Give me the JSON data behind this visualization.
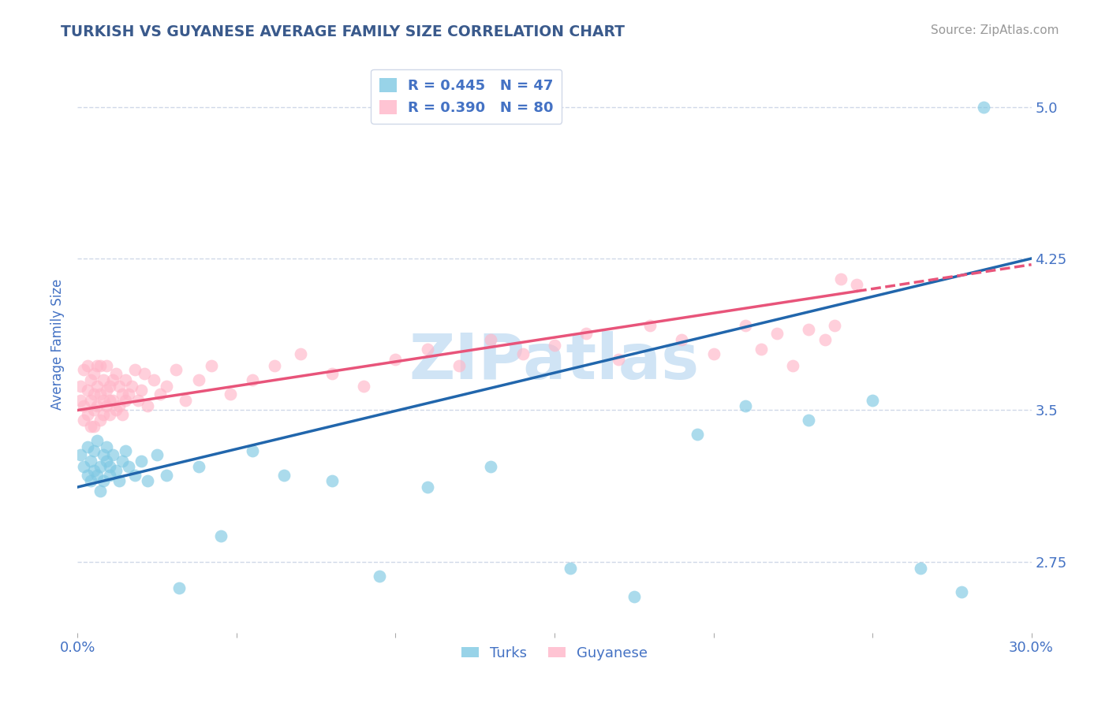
{
  "title": "TURKISH VS GUYANESE AVERAGE FAMILY SIZE CORRELATION CHART",
  "source": "Source: ZipAtlas.com",
  "ylabel": "Average Family Size",
  "xmin": 0.0,
  "xmax": 0.3,
  "ymin": 2.4,
  "ymax": 5.25,
  "yticks": [
    2.75,
    3.5,
    4.25,
    5.0
  ],
  "xticks": [
    0.0,
    0.05,
    0.1,
    0.15,
    0.2,
    0.25,
    0.3
  ],
  "xticklabels": [
    "0.0%",
    "",
    "",
    "",
    "",
    "",
    "30.0%"
  ],
  "title_color": "#3a5a8c",
  "axis_color": "#4472c4",
  "turks_color": "#7ec8e3",
  "guyanese_color": "#ffb6c8",
  "turks_line_color": "#2166ac",
  "guyanese_line_color": "#e8547a",
  "watermark": "ZIPatlas",
  "watermark_color": "#d0e4f5",
  "background_color": "#ffffff",
  "grid_color": "#d0d8e8",
  "legend_turks_label": "R = 0.445   N = 47",
  "legend_guyanese_label": "R = 0.390   N = 80",
  "turks_x": [
    0.001,
    0.002,
    0.003,
    0.003,
    0.004,
    0.004,
    0.005,
    0.005,
    0.006,
    0.006,
    0.007,
    0.007,
    0.008,
    0.008,
    0.009,
    0.009,
    0.01,
    0.01,
    0.011,
    0.012,
    0.013,
    0.014,
    0.015,
    0.016,
    0.018,
    0.02,
    0.022,
    0.025,
    0.028,
    0.032,
    0.038,
    0.045,
    0.055,
    0.065,
    0.08,
    0.095,
    0.11,
    0.13,
    0.155,
    0.175,
    0.195,
    0.21,
    0.23,
    0.25,
    0.265,
    0.278,
    0.285
  ],
  "turks_y": [
    3.28,
    3.22,
    3.18,
    3.32,
    3.25,
    3.15,
    3.2,
    3.3,
    3.18,
    3.35,
    3.22,
    3.1,
    3.28,
    3.15,
    3.25,
    3.32,
    3.18,
    3.22,
    3.28,
    3.2,
    3.15,
    3.25,
    3.3,
    3.22,
    3.18,
    3.25,
    3.15,
    3.28,
    3.18,
    2.62,
    3.22,
    2.88,
    3.3,
    3.18,
    3.15,
    2.68,
    3.12,
    3.22,
    2.72,
    2.58,
    3.38,
    3.52,
    3.45,
    3.55,
    2.72,
    2.6,
    5.0
  ],
  "guyanese_x": [
    0.001,
    0.001,
    0.002,
    0.002,
    0.002,
    0.003,
    0.003,
    0.003,
    0.004,
    0.004,
    0.004,
    0.005,
    0.005,
    0.005,
    0.005,
    0.006,
    0.006,
    0.006,
    0.007,
    0.007,
    0.007,
    0.008,
    0.008,
    0.008,
    0.009,
    0.009,
    0.009,
    0.01,
    0.01,
    0.01,
    0.011,
    0.011,
    0.012,
    0.012,
    0.013,
    0.013,
    0.014,
    0.014,
    0.015,
    0.015,
    0.016,
    0.017,
    0.018,
    0.019,
    0.02,
    0.021,
    0.022,
    0.024,
    0.026,
    0.028,
    0.031,
    0.034,
    0.038,
    0.042,
    0.048,
    0.055,
    0.062,
    0.07,
    0.08,
    0.09,
    0.1,
    0.11,
    0.12,
    0.13,
    0.14,
    0.15,
    0.16,
    0.17,
    0.18,
    0.19,
    0.2,
    0.21,
    0.215,
    0.22,
    0.225,
    0.23,
    0.235,
    0.238,
    0.24,
    0.245
  ],
  "guyanese_y": [
    3.55,
    3.62,
    3.45,
    3.7,
    3.52,
    3.48,
    3.6,
    3.72,
    3.55,
    3.42,
    3.65,
    3.5,
    3.68,
    3.42,
    3.58,
    3.52,
    3.62,
    3.72,
    3.58,
    3.45,
    3.72,
    3.55,
    3.65,
    3.48,
    3.6,
    3.52,
    3.72,
    3.55,
    3.62,
    3.48,
    3.65,
    3.55,
    3.5,
    3.68,
    3.52,
    3.62,
    3.48,
    3.58,
    3.55,
    3.65,
    3.58,
    3.62,
    3.7,
    3.55,
    3.6,
    3.68,
    3.52,
    3.65,
    3.58,
    3.62,
    3.7,
    3.55,
    3.65,
    3.72,
    3.58,
    3.65,
    3.72,
    3.78,
    3.68,
    3.62,
    3.75,
    3.8,
    3.72,
    3.85,
    3.78,
    3.82,
    3.88,
    3.75,
    3.92,
    3.85,
    3.78,
    3.92,
    3.8,
    3.88,
    3.72,
    3.9,
    3.85,
    3.92,
    4.15,
    4.12
  ]
}
